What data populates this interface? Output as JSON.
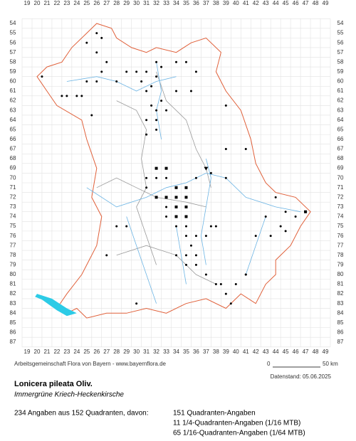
{
  "grid": {
    "columns": [
      19,
      20,
      21,
      22,
      23,
      24,
      25,
      26,
      27,
      28,
      29,
      30,
      31,
      32,
      33,
      34,
      35,
      36,
      37,
      38,
      39,
      40,
      41,
      42,
      43,
      44,
      45,
      46,
      47,
      48,
      49
    ],
    "rows": [
      54,
      55,
      56,
      57,
      58,
      59,
      60,
      61,
      62,
      63,
      64,
      65,
      66,
      67,
      68,
      69,
      70,
      71,
      72,
      73,
      74,
      75,
      76,
      77,
      78,
      79,
      80,
      81,
      82,
      83,
      84,
      85,
      86,
      87
    ]
  },
  "footer": {
    "source": "Arbeitsgemeinschaft Flora von Bayern - www.bayernflora.de",
    "scale_start": "0",
    "scale_end": "50 km",
    "date": "Datenstand: 05.06.2025"
  },
  "species": {
    "name": "Lonicera pileata Oliv.",
    "common_name": "Immergrüne Kriech-Heckenkirsche"
  },
  "summary": {
    "total": "234 Angaben aus 152 Quadranten, davon:",
    "breakdown": [
      "151 Quadranten-Angaben",
      "11 1/4-Quadranten-Angaben (1/16 MTB)",
      "65 1/16-Quadranten-Angaben (1/64 MTB)"
    ]
  }
}
